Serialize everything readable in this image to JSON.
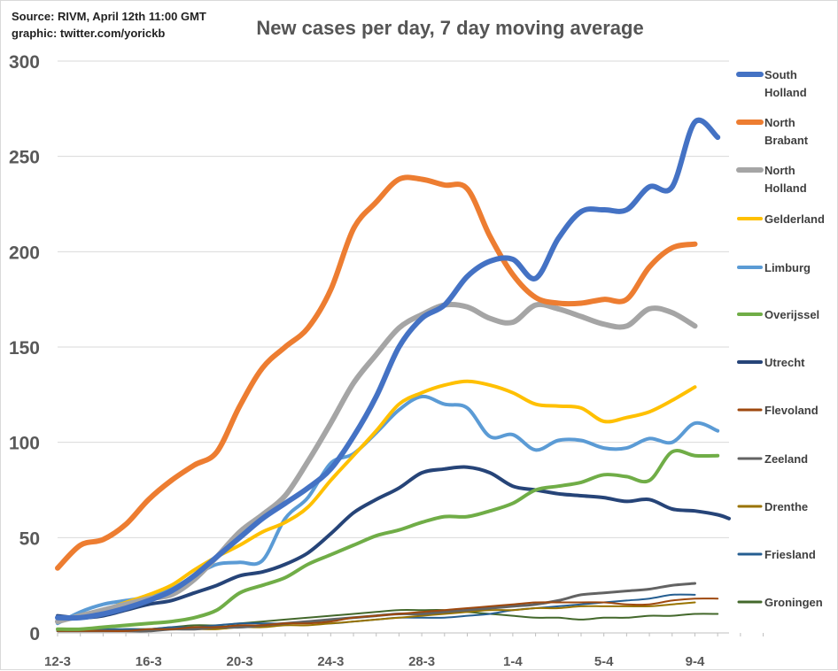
{
  "header": {
    "source_line1": "Source: RIVM, April 12th 11:00  GMT",
    "source_line2": "graphic: twitter.com/yorickb"
  },
  "chart_data": {
    "type": "line",
    "title": "New cases per day, 7 day moving average",
    "xlabel": "",
    "ylabel": "",
    "ylim": [
      0,
      300
    ],
    "yticks": [
      0,
      50,
      100,
      150,
      200,
      250,
      300
    ],
    "grid": true,
    "legend_position": "right",
    "x": [
      "12-3",
      "13-3",
      "14-3",
      "15-3",
      "16-3",
      "17-3",
      "18-3",
      "19-3",
      "20-3",
      "21-3",
      "22-3",
      "23-3",
      "24-3",
      "25-3",
      "26-3",
      "27-3",
      "28-3",
      "29-3",
      "30-3",
      "31-3",
      "1-4",
      "2-4",
      "3-4",
      "4-4",
      "5-4",
      "6-4",
      "7-4",
      "8-4",
      "9-4",
      "10-4",
      "11-4",
      "12-4"
    ],
    "xtick_labels": [
      "12-3",
      "16-3",
      "20-3",
      "24-3",
      "28-3",
      "1-4",
      "5-4",
      "9-4"
    ],
    "series": [
      {
        "name": "South Holland",
        "color": "#4472C4",
        "width": 6,
        "values": [
          8,
          8,
          10,
          13,
          17,
          22,
          30,
          40,
          50,
          60,
          68,
          76,
          86,
          103,
          124,
          150,
          165,
          172,
          187,
          195,
          196,
          186,
          207,
          221,
          222,
          222,
          234,
          234,
          268,
          260,
          null,
          null
        ]
      },
      {
        "name": "North Brabant",
        "color": "#ED7D31",
        "width": 6,
        "values": [
          34,
          46,
          49,
          57,
          70,
          80,
          88,
          95,
          119,
          139,
          150,
          160,
          180,
          212,
          226,
          238,
          238,
          235,
          233,
          208,
          188,
          176,
          173,
          173,
          175,
          175,
          192,
          202,
          204,
          null,
          null,
          null
        ]
      },
      {
        "name": "North Holland",
        "color": "#A5A5A5",
        "width": 6,
        "values": [
          6,
          9,
          12,
          15,
          18,
          20,
          28,
          40,
          53,
          62,
          72,
          90,
          110,
          131,
          146,
          160,
          167,
          172,
          171,
          165,
          163,
          172,
          170,
          166,
          162,
          161,
          170,
          168,
          161,
          null,
          null,
          null
        ]
      },
      {
        "name": "Gelderland",
        "color": "#FFC000",
        "width": 4,
        "values": [
          6,
          9,
          12,
          16,
          20,
          25,
          33,
          40,
          46,
          53,
          58,
          66,
          80,
          93,
          106,
          120,
          126,
          130,
          132,
          130,
          126,
          120,
          119,
          118,
          111,
          113,
          116,
          122,
          129,
          null,
          null,
          null
        ]
      },
      {
        "name": "Limburg",
        "color": "#5B9BD5",
        "width": 4,
        "values": [
          5,
          11,
          15,
          17,
          19,
          23,
          30,
          36,
          37,
          38,
          60,
          71,
          89,
          94,
          105,
          117,
          124,
          120,
          118,
          103,
          104,
          96,
          101,
          101,
          97,
          97,
          102,
          100,
          110,
          106,
          null,
          null
        ]
      },
      {
        "name": "Overijssel",
        "color": "#70AD47",
        "width": 4,
        "values": [
          2,
          2,
          3,
          4,
          5,
          6,
          8,
          12,
          21,
          25,
          29,
          36,
          41,
          46,
          51,
          54,
          58,
          61,
          61,
          64,
          68,
          75,
          77,
          79,
          83,
          82,
          80,
          95,
          93,
          93,
          null,
          null
        ]
      },
      {
        "name": "Utrecht",
        "color": "#264478",
        "width": 4,
        "values": [
          9,
          8,
          9,
          12,
          15,
          17,
          21,
          25,
          30,
          32,
          36,
          42,
          52,
          63,
          70,
          76,
          84,
          86,
          87,
          84,
          77,
          75,
          73,
          72,
          71,
          69,
          70,
          65,
          64,
          62,
          60,
          null
        ]
      },
      {
        "name": "Flevoland",
        "color": "#9E480E",
        "width": 2,
        "values": [
          1,
          1,
          1,
          1,
          2,
          2,
          3,
          3,
          4,
          4,
          5,
          5,
          6,
          8,
          9,
          10,
          11,
          12,
          13,
          14,
          15,
          16,
          16,
          16,
          16,
          15,
          15,
          17,
          18,
          18,
          null,
          null
        ]
      },
      {
        "name": "Zeeland",
        "color": "#636363",
        "width": 3,
        "values": [
          1,
          1,
          1,
          1,
          1,
          2,
          2,
          3,
          3,
          4,
          5,
          6,
          7,
          8,
          9,
          10,
          10,
          11,
          12,
          13,
          14,
          15,
          17,
          20,
          21,
          22,
          23,
          25,
          26,
          null,
          null,
          null
        ]
      },
      {
        "name": "Drenthe",
        "color": "#997300",
        "width": 2,
        "values": [
          1,
          1,
          1,
          1,
          1,
          2,
          2,
          2,
          3,
          3,
          4,
          4,
          5,
          6,
          7,
          8,
          9,
          10,
          11,
          12,
          12,
          13,
          13,
          14,
          14,
          14,
          14,
          15,
          16,
          null,
          null,
          null
        ]
      },
      {
        "name": "Friesland",
        "color": "#255E91",
        "width": 2,
        "values": [
          2,
          2,
          2,
          2,
          2,
          3,
          3,
          4,
          5,
          5,
          5,
          6,
          5,
          6,
          7,
          8,
          8,
          8,
          9,
          10,
          12,
          13,
          14,
          15,
          16,
          17,
          18,
          20,
          20,
          null,
          null,
          null
        ]
      },
      {
        "name": "Groningen",
        "color": "#43682B",
        "width": 2,
        "values": [
          1,
          1,
          1,
          2,
          2,
          3,
          4,
          4,
          5,
          6,
          7,
          8,
          9,
          10,
          11,
          12,
          12,
          12,
          11,
          10,
          9,
          8,
          8,
          7,
          8,
          8,
          9,
          9,
          10,
          10,
          null,
          null
        ]
      }
    ]
  }
}
